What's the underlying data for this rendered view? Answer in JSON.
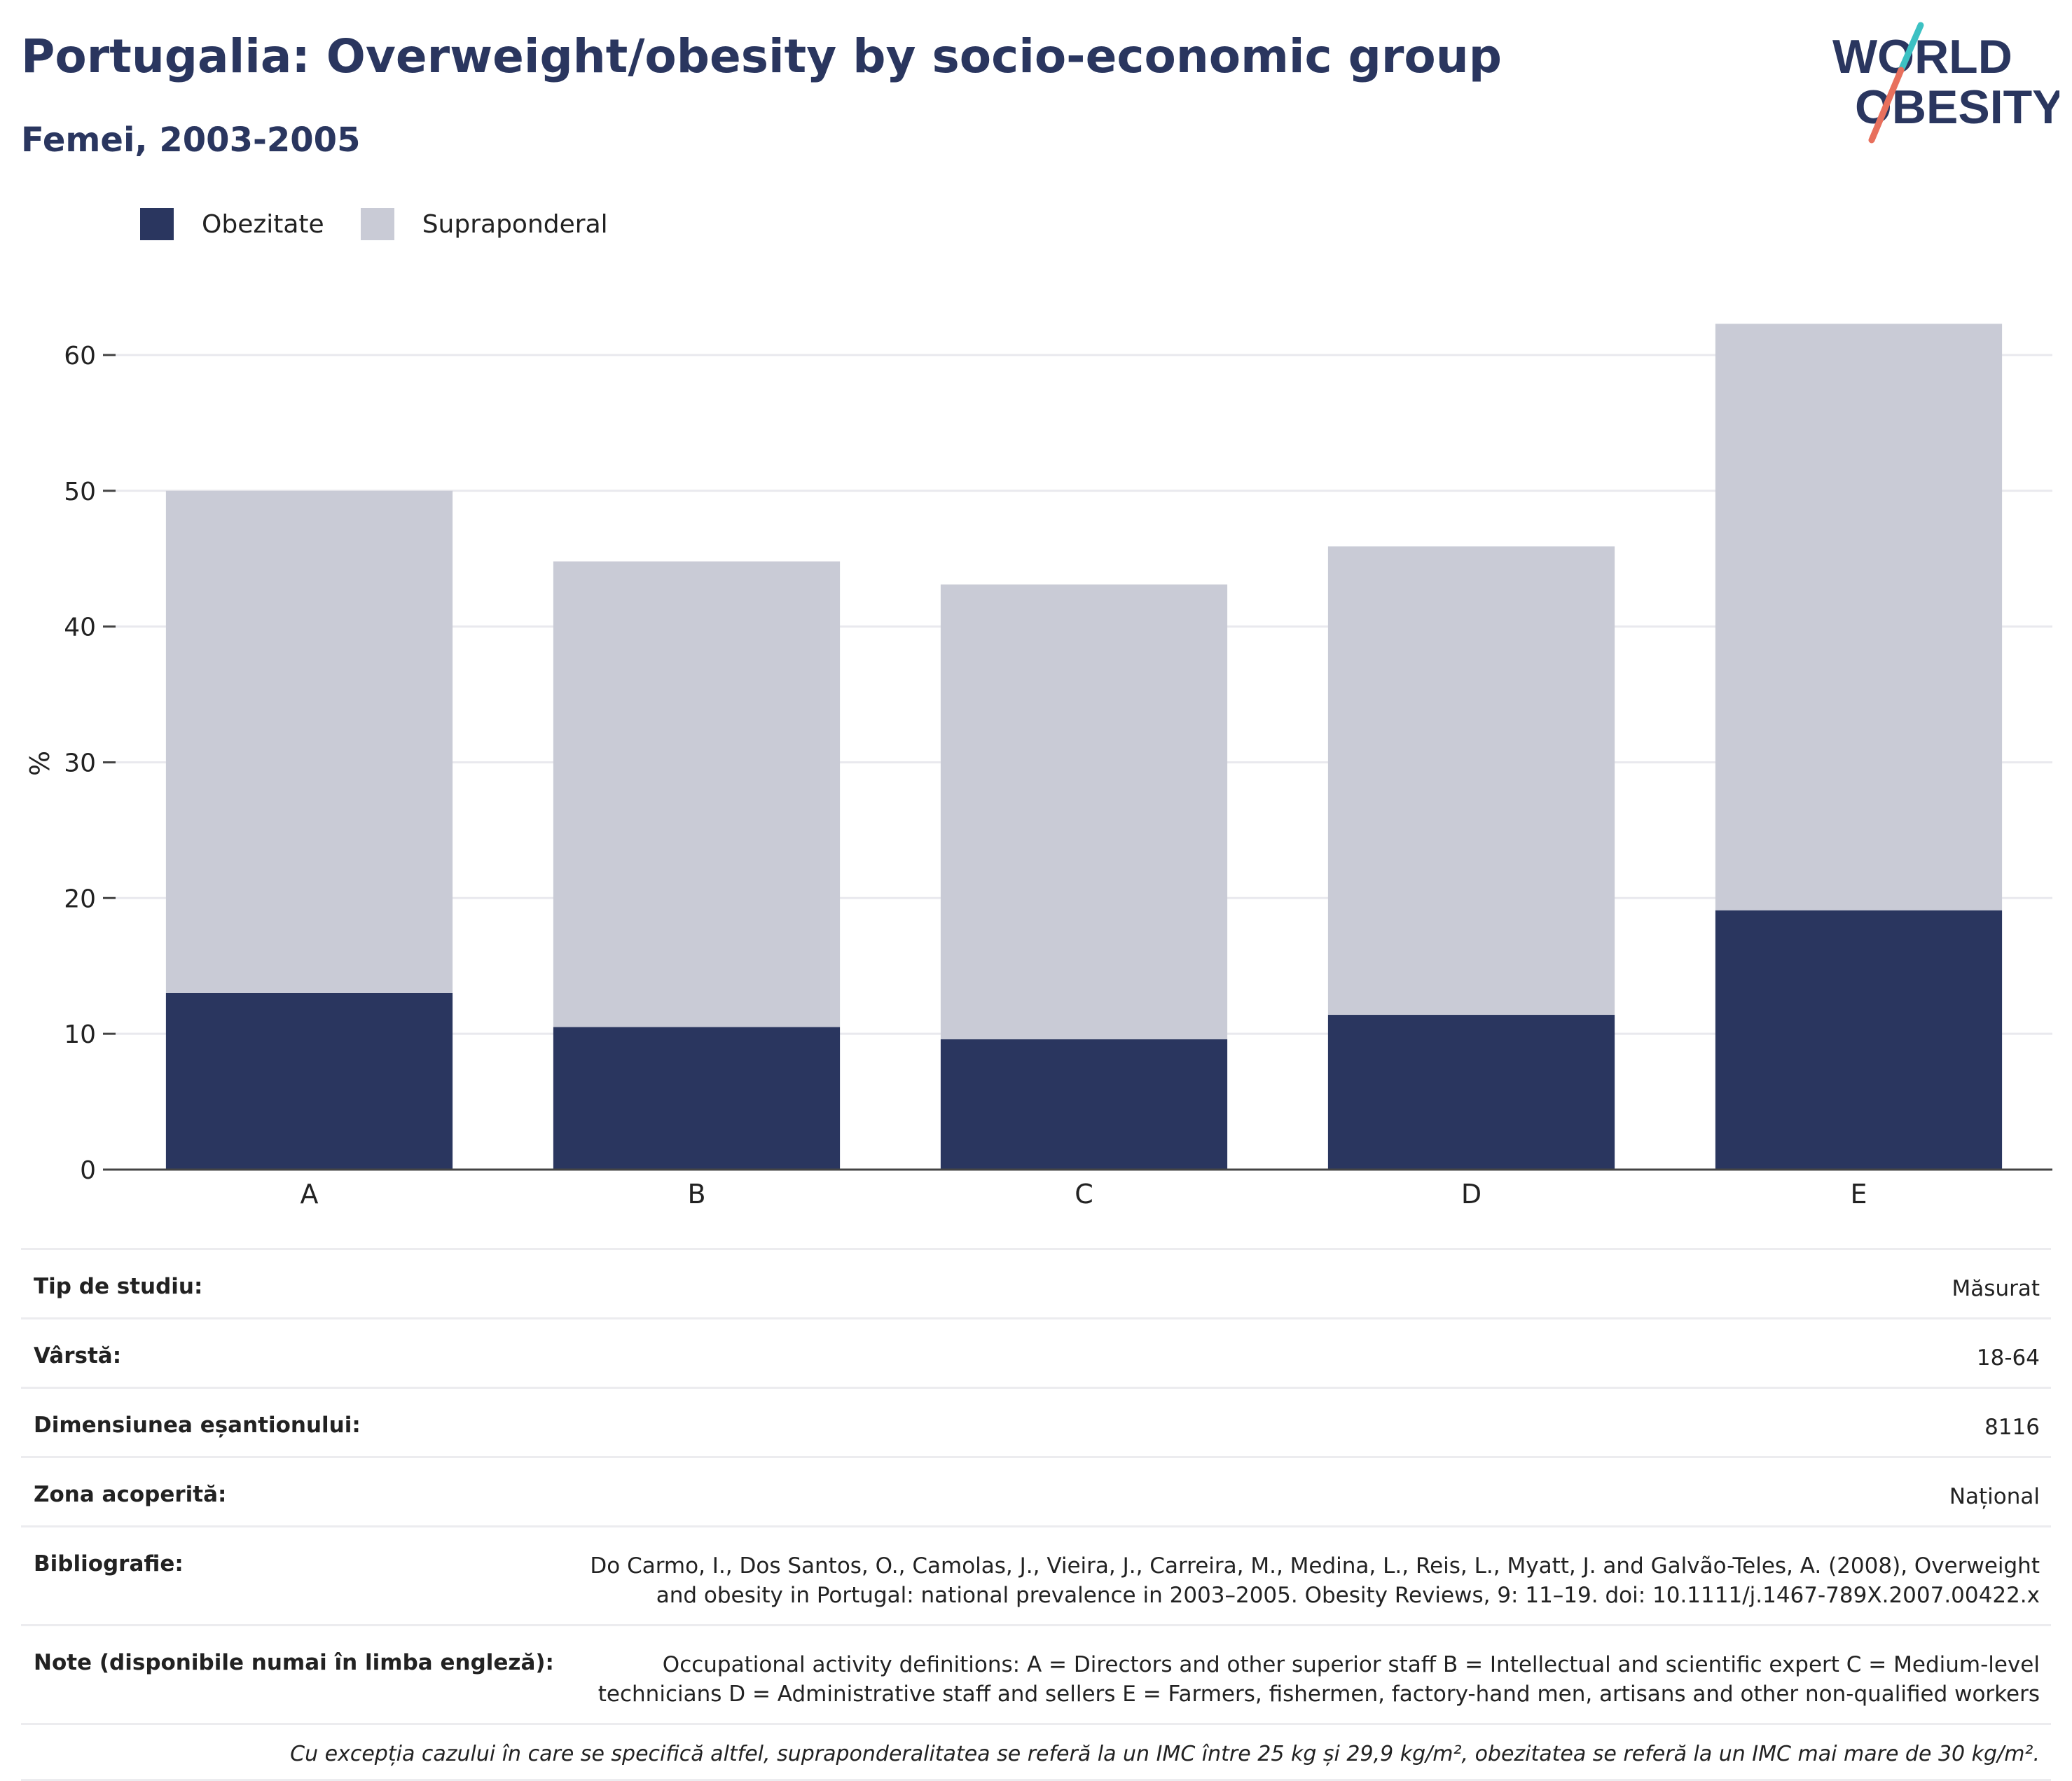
{
  "header": {
    "title": "Portugalia: Overweight/obesity by socio-economic group",
    "subtitle": "Femei, 2003-2005"
  },
  "logo": {
    "line1": "WORLD",
    "line2": "OBESITY",
    "colors": {
      "text": "#2a365f",
      "slash_top": "#3cc1c3",
      "slash_bottom": "#e8705d"
    }
  },
  "legend": {
    "items": [
      {
        "label": "Obezitate",
        "color": "#2a365f"
      },
      {
        "label": "Supraponderal",
        "color": "#c9cbd6"
      }
    ]
  },
  "chart_data": {
    "type": "bar",
    "stacked": true,
    "categories": [
      "A",
      "B",
      "C",
      "D",
      "E"
    ],
    "series": [
      {
        "name": "Obezitate",
        "color": "#2a365f",
        "values": [
          13,
          10.5,
          9.6,
          11.4,
          19.1
        ]
      },
      {
        "name": "Supraponderal",
        "color": "#c9cbd6",
        "values": [
          37,
          34.3,
          33.5,
          34.5,
          43.2
        ]
      }
    ],
    "ylabel": "%",
    "xlabel": "",
    "ylim": [
      0,
      65
    ],
    "yticks": [
      0,
      10,
      20,
      30,
      40,
      50,
      60
    ],
    "grid": true,
    "legend_position": "top-left"
  },
  "info": {
    "rows": [
      {
        "label": "Tip de studiu:",
        "value": "Măsurat"
      },
      {
        "label": "Vârstă:",
        "value": "18-64"
      },
      {
        "label": "Dimensiunea eșantionului:",
        "value": "8116"
      },
      {
        "label": "Zona acoperită:",
        "value": "Național"
      },
      {
        "label": "Bibliografie:",
        "value": "Do Carmo, I., Dos Santos, O., Camolas, J., Vieira, J., Carreira, M., Medina, L., Reis, L., Myatt, J. and Galvão-Teles, A. (2008), Overweight and obesity in Portugal: national prevalence in 2003–2005. Obesity Reviews, 9: 11–19. doi: 10.1111/j.1467-789X.2007.00422.x"
      },
      {
        "label": "Note (disponibile numai în limba engleză):",
        "value": "Occupational activity definitions: A = Directors and other superior staff B = Intellectual and scientific expert C = Medium-level technicians D = Administrative staff and sellers E = Farmers, fishermen, factory-hand men, artisans and other non-qualified workers"
      }
    ],
    "footnote": "Cu excepția cazului în care se specifică altfel, supraponderalitatea se referă la un IMC între 25 kg și 29,9 kg/m², obezitatea se referă la un IMC mai mare de 30 kg/m²."
  }
}
